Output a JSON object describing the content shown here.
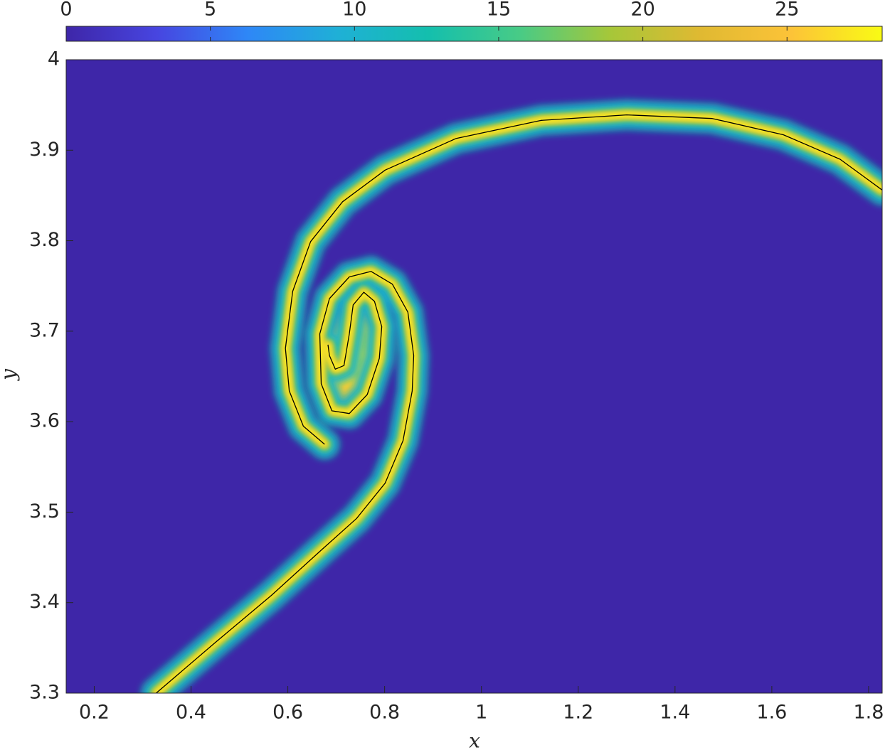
{
  "chart_data": {
    "type": "heatmap",
    "xlabel": "x",
    "ylabel": "y",
    "xlim": [
      0.142,
      1.828
    ],
    "ylim": [
      3.3,
      4
    ],
    "xticks": [
      0.2,
      0.4,
      0.6,
      0.8,
      1,
      1.2,
      1.4,
      1.6,
      1.8
    ],
    "yticks": [
      3.3,
      3.4,
      3.5,
      3.6,
      3.7,
      3.8,
      3.9,
      4
    ],
    "colorbar": {
      "clim": [
        0,
        28.3
      ],
      "ticks": [
        0,
        5,
        10,
        15,
        20,
        25
      ]
    },
    "colormap": [
      "#3e26a8",
      "#4745e0",
      "#2e87f7",
      "#1fb0d6",
      "#14bfad",
      "#48cb86",
      "#a6c739",
      "#e0b932",
      "#fcc338",
      "#f9fb14"
    ],
    "contours": [
      {
        "x": [
          0.328,
          0.448,
          0.566,
          0.669,
          0.742,
          0.801,
          0.838,
          0.857,
          0.86,
          0.848,
          0.816,
          0.772,
          0.727,
          0.686,
          0.666,
          0.669,
          0.691,
          0.727,
          0.764,
          0.789,
          0.794,
          0.779,
          0.757,
          0.735,
          0.727,
          0.716,
          0.698,
          0.686,
          0.683
        ],
        "y": [
          3.3,
          3.355,
          3.408,
          3.458,
          3.493,
          3.532,
          3.579,
          3.634,
          3.673,
          3.721,
          3.752,
          3.766,
          3.76,
          3.736,
          3.697,
          3.642,
          3.612,
          3.609,
          3.63,
          3.67,
          3.705,
          3.733,
          3.743,
          3.729,
          3.697,
          3.662,
          3.658,
          3.673,
          3.685
        ]
      },
      {
        "x": [
          0.676,
          0.632,
          0.603,
          0.595,
          0.61,
          0.647,
          0.713,
          0.801,
          0.948,
          1.124,
          1.3,
          1.477,
          1.624,
          1.741,
          1.828
        ],
        "y": [
          3.575,
          3.595,
          3.634,
          3.681,
          3.744,
          3.799,
          3.843,
          3.878,
          3.913,
          3.933,
          3.939,
          3.935,
          3.917,
          3.89,
          3.856
        ]
      }
    ]
  }
}
